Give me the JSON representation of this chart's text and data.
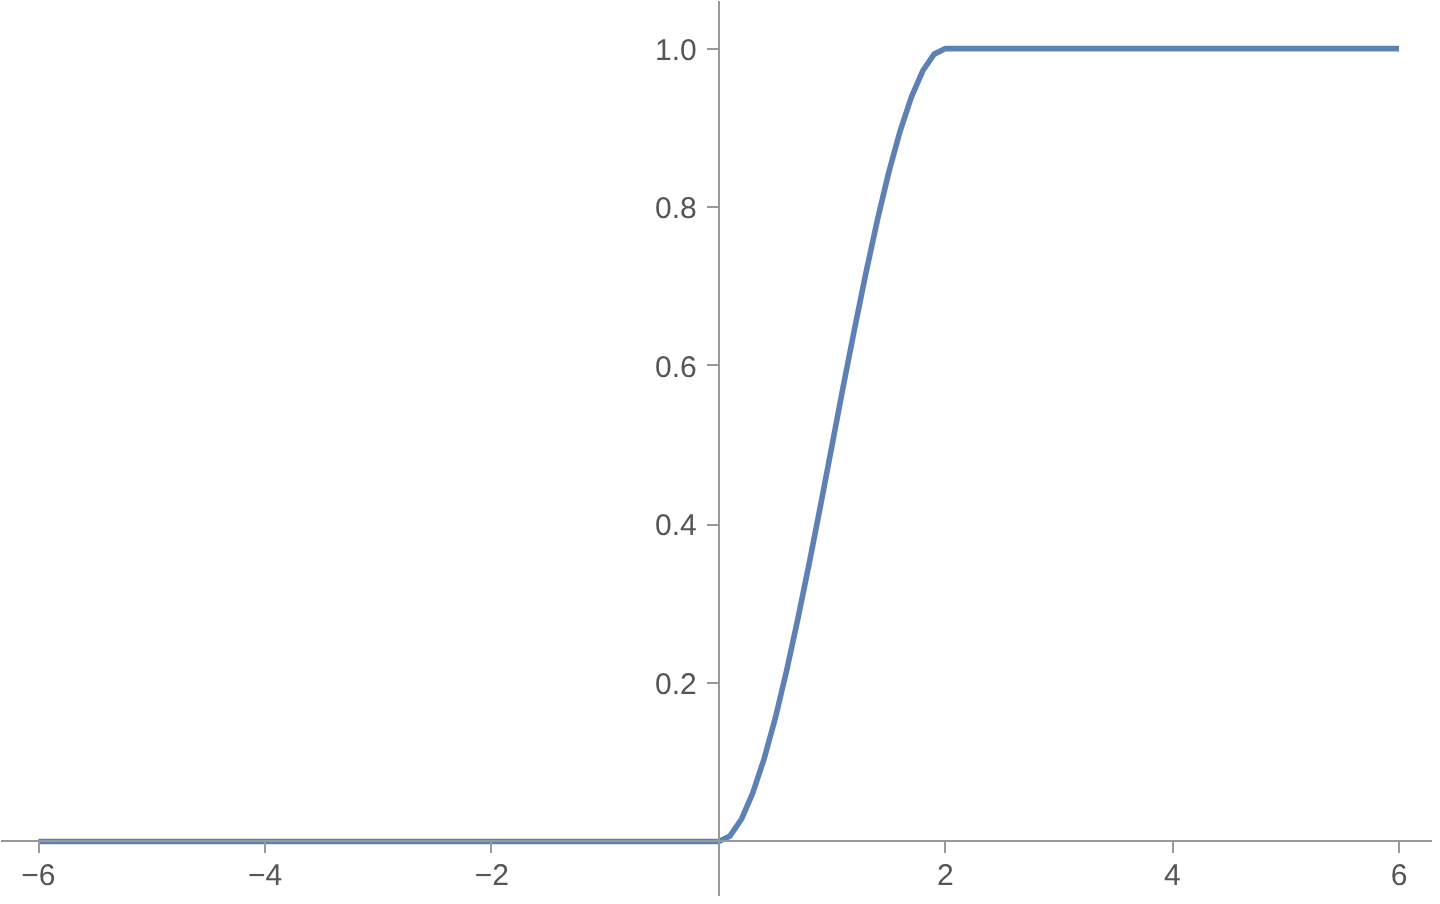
{
  "chart_data": {
    "type": "line",
    "xlim": [
      -6.33,
      6.3
    ],
    "ylim": [
      -0.07,
      1.06
    ],
    "xticks": [
      {
        "value": -6,
        "label": "−6"
      },
      {
        "value": -4,
        "label": "−4"
      },
      {
        "value": -2,
        "label": "−2"
      },
      {
        "value": 2,
        "label": "2"
      },
      {
        "value": 4,
        "label": "4"
      },
      {
        "value": 6,
        "label": "6"
      }
    ],
    "yticks": [
      {
        "value": 0.2,
        "label": "0.2"
      },
      {
        "value": 0.4,
        "label": "0.4"
      },
      {
        "value": 0.6,
        "label": "0.6"
      },
      {
        "value": 0.8,
        "label": "0.8"
      },
      {
        "value": 1.0,
        "label": "1.0"
      }
    ],
    "grid": false,
    "marker": "none",
    "line_style": "solid",
    "series": [
      {
        "color": "#5e81b5",
        "x": [
          -6,
          0,
          0.1,
          0.2,
          0.3,
          0.4,
          0.5,
          0.6,
          0.7,
          0.8,
          0.9,
          1.0,
          1.1,
          1.2,
          1.3,
          1.4,
          1.5,
          1.6,
          1.7,
          1.8,
          1.9,
          2.0,
          6
        ],
        "values": [
          0,
          0,
          0.007,
          0.028,
          0.061,
          0.104,
          0.156,
          0.216,
          0.282,
          0.352,
          0.425,
          0.5,
          0.575,
          0.648,
          0.718,
          0.784,
          0.844,
          0.896,
          0.939,
          0.972,
          0.993,
          1,
          1
        ]
      }
    ]
  }
}
